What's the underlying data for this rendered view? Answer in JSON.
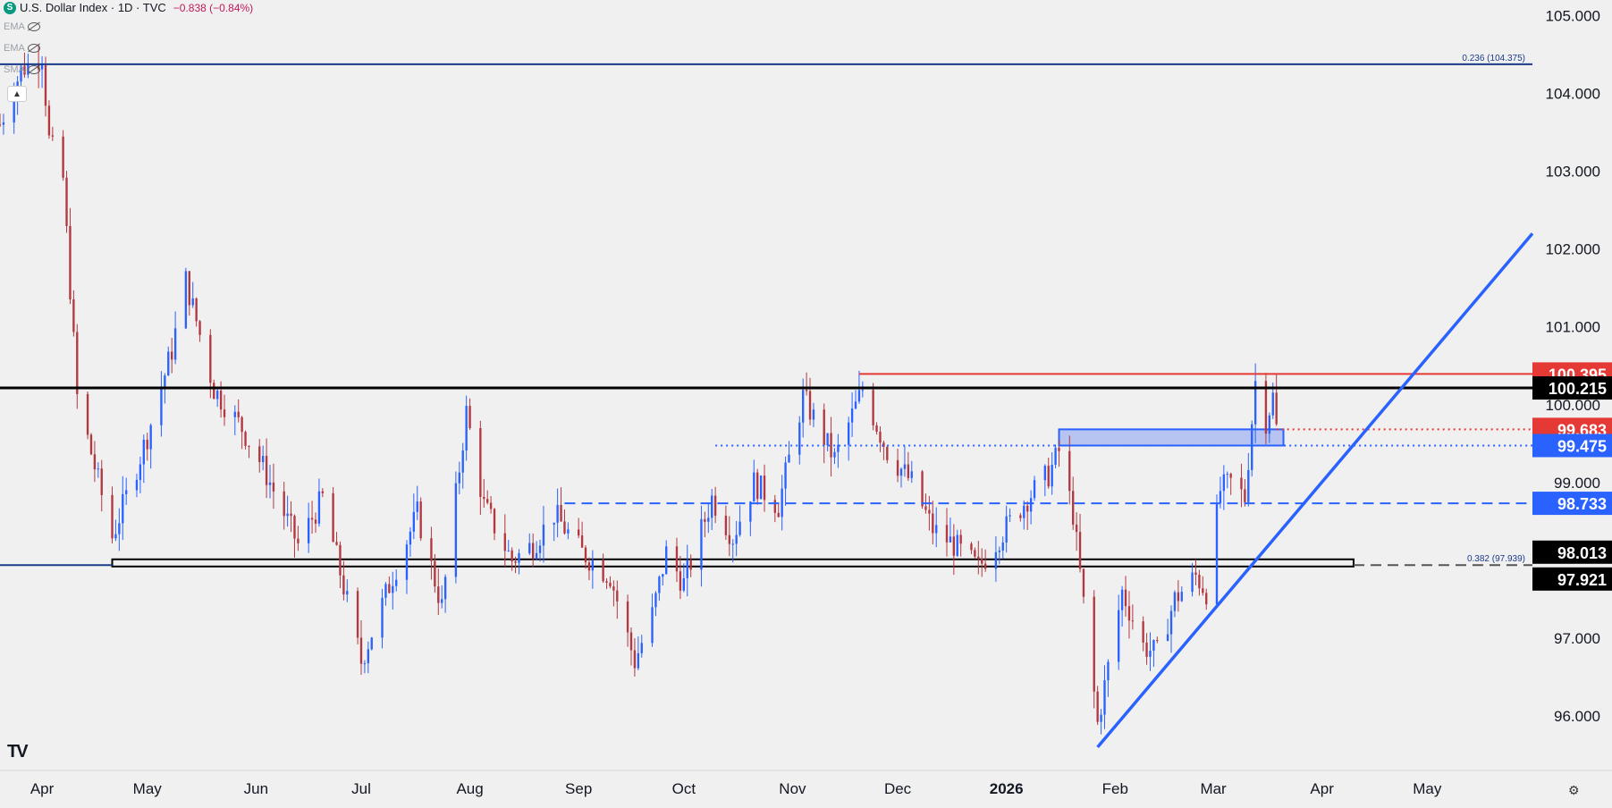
{
  "header": {
    "symbol_icon": "S",
    "title": "U.S. Dollar Index · 1D · TVC",
    "change": "−0.838 (−0.84%)"
  },
  "indicators": [
    {
      "label": "EMA",
      "icon": "eye-off-icon"
    },
    {
      "label": "EMA",
      "icon": "eye-off-icon"
    },
    {
      "label": "SMA",
      "icon": "eye-off-icon"
    }
  ],
  "collapse_icon": "chevron-up-icon",
  "footer": {
    "logo": "TV",
    "settings_icon": "gear-icon"
  },
  "colors": {
    "up": "#2962ff",
    "down": "#b2373f",
    "background": "#f0f0f0",
    "support_line": "#000000",
    "resistance_red": "#e53935",
    "zone_fill": "#a9b8f0"
  },
  "chart_data": {
    "type": "candlestick",
    "title": "U.S. Dollar Index · 1D · TVC",
    "ylim": [
      95.3,
      105.2
    ],
    "y_ticks": [
      "105.000",
      "104.000",
      "103.000",
      "102.000",
      "101.000",
      "100.000",
      "99.000",
      "97.000",
      "96.000"
    ],
    "x_ticks": [
      "Apr",
      "May",
      "Jun",
      "Jul",
      "Aug",
      "Sep",
      "Oct",
      "Nov",
      "Dec",
      "2026",
      "Feb",
      "Mar",
      "Apr",
      "May"
    ],
    "x_tick_dates": [
      "2025-04-01",
      "2025-05-01",
      "2025-06-01",
      "2025-07-01",
      "2025-08-01",
      "2025-09-01",
      "2025-10-01",
      "2025-11-01",
      "2025-12-01",
      "2026-01-01",
      "2026-02-01",
      "2026-03-01",
      "2026-04-01",
      "2026-05-01"
    ],
    "x_range": [
      "2025-03-20",
      "2026-05-31"
    ],
    "price_labels": [
      {
        "value": 100.395,
        "text": "100.395",
        "bg": "#e53935",
        "fg": "#ffffff"
      },
      {
        "value": 100.215,
        "text": "100.215",
        "bg": "#000000",
        "fg": "#ffffff"
      },
      {
        "value": 99.683,
        "text": "99.683",
        "bg": "#e53935",
        "fg": "#ffffff"
      },
      {
        "value": 99.475,
        "text": "99.475",
        "bg": "#2962ff",
        "fg": "#ffffff"
      },
      {
        "value": 98.733,
        "text": "98.733",
        "bg": "#2962ff",
        "fg": "#ffffff"
      },
      {
        "value": 98.013,
        "text": "98.013",
        "bg": "#000000",
        "fg": "#ffffff"
      },
      {
        "value": 97.921,
        "text": "97.921",
        "bg": "#000000",
        "fg": "#ffffff"
      }
    ],
    "fib_levels": [
      {
        "ratio": "0.236",
        "value": 104.375,
        "text": "0.236 (104.375)"
      },
      {
        "ratio": "0.382",
        "value": 97.939,
        "text": "0.382 (97.939)"
      }
    ],
    "lines": [
      {
        "type": "horizontal",
        "value": 100.215,
        "from": "2025-03-20",
        "to": "2026-05-31",
        "color": "#000000",
        "style": "solid"
      },
      {
        "type": "horizontal",
        "value": 100.395,
        "from": "2025-11-20",
        "to": "2026-05-31",
        "color": "#e53935",
        "style": "solid"
      },
      {
        "type": "horizontal",
        "value": 99.683,
        "from": "2026-03-19",
        "to": "2026-05-31",
        "color": "#e53935",
        "style": "dotted"
      },
      {
        "type": "horizontal",
        "value": 99.475,
        "from": "2025-10-10",
        "to": "2026-05-31",
        "color": "#2962ff",
        "style": "dotted"
      },
      {
        "type": "horizontal",
        "value": 98.733,
        "from": "2025-08-28",
        "to": "2026-05-31",
        "color": "#2962ff",
        "style": "dashed"
      },
      {
        "type": "horizontal",
        "value": 104.375,
        "from": "2025-03-20",
        "to": "2026-05-31",
        "color": "#1a3a8a",
        "style": "solid"
      },
      {
        "type": "horizontal",
        "value": 97.939,
        "from": "2025-03-20",
        "to": "2025-04-21",
        "color": "#1a3a8a",
        "style": "solid"
      },
      {
        "type": "horizontal",
        "value": 97.939,
        "from": "2026-04-10",
        "to": "2026-05-31",
        "color": "#555555",
        "style": "dashed"
      },
      {
        "type": "trendline",
        "from": [
          "2026-01-27",
          95.6
        ],
        "to": [
          "2026-05-31",
          102.2
        ],
        "color": "#2962ff",
        "style": "solid"
      }
    ],
    "zones": [
      {
        "from": "2025-04-21",
        "to": "2026-04-10",
        "low": 97.921,
        "high": 98.013,
        "fill": "none",
        "stroke": "#000000"
      },
      {
        "from": "2026-01-16",
        "to": "2026-03-21",
        "low": 99.475,
        "high": 99.683,
        "fill": "#a9b8f0",
        "stroke": "#2962ff"
      }
    ],
    "pivots": [
      [
        "2025-03-20",
        103.6
      ],
      [
        "2025-03-26",
        104.3
      ],
      [
        "2025-04-01",
        104.5
      ],
      [
        "2025-04-03",
        103.4
      ],
      [
        "2025-04-07",
        102.9
      ],
      [
        "2025-04-11",
        100.1
      ],
      [
        "2025-04-21",
        98.3
      ],
      [
        "2025-04-28",
        99.2
      ],
      [
        "2025-05-01",
        99.6
      ],
      [
        "2025-05-08",
        100.7
      ],
      [
        "2025-05-12",
        101.6
      ],
      [
        "2025-05-20",
        100.2
      ],
      [
        "2025-05-28",
        99.7
      ],
      [
        "2025-06-03",
        99.2
      ],
      [
        "2025-06-13",
        98.2
      ],
      [
        "2025-06-20",
        98.8
      ],
      [
        "2025-07-01",
        96.7
      ],
      [
        "2025-07-10",
        97.8
      ],
      [
        "2025-07-17",
        98.6
      ],
      [
        "2025-07-24",
        97.4
      ],
      [
        "2025-07-31",
        99.9
      ],
      [
        "2025-08-05",
        98.7
      ],
      [
        "2025-08-13",
        98.0
      ],
      [
        "2025-08-19",
        98.2
      ],
      [
        "2025-08-25",
        98.6
      ],
      [
        "2025-09-02",
        98.1
      ],
      [
        "2025-09-10",
        97.8
      ],
      [
        "2025-09-17",
        96.7
      ],
      [
        "2025-09-22",
        97.3
      ],
      [
        "2025-09-26",
        98.1
      ],
      [
        "2025-10-01",
        97.7
      ],
      [
        "2025-10-09",
        98.8
      ],
      [
        "2025-10-15",
        98.3
      ],
      [
        "2025-10-21",
        99.0
      ],
      [
        "2025-10-28",
        98.7
      ],
      [
        "2025-11-04",
        100.1
      ],
      [
        "2025-11-13",
        99.3
      ],
      [
        "2025-11-21",
        100.2
      ],
      [
        "2025-11-28",
        99.4
      ],
      [
        "2025-12-05",
        99.0
      ],
      [
        "2025-12-11",
        98.4
      ],
      [
        "2025-12-17",
        98.2
      ],
      [
        "2025-12-24",
        97.9
      ],
      [
        "2025-12-30",
        98.3
      ],
      [
        "2026-01-07",
        98.8
      ],
      [
        "2026-01-13",
        99.1
      ],
      [
        "2026-01-16",
        99.4
      ],
      [
        "2026-01-20",
        98.6
      ],
      [
        "2026-01-27",
        95.9
      ],
      [
        "2026-02-03",
        97.6
      ],
      [
        "2026-02-09",
        96.9
      ],
      [
        "2026-02-13",
        96.8
      ],
      [
        "2026-02-18",
        97.5
      ],
      [
        "2026-02-24",
        97.8
      ],
      [
        "2026-02-27",
        97.6
      ],
      [
        "2026-03-03",
        98.9
      ],
      [
        "2026-03-06",
        99.0
      ],
      [
        "2026-03-10",
        98.8
      ],
      [
        "2026-03-13",
        100.3
      ],
      [
        "2026-03-16",
        99.8
      ],
      [
        "2026-03-18",
        100.1
      ],
      [
        "2026-03-20",
        99.3
      ]
    ]
  }
}
